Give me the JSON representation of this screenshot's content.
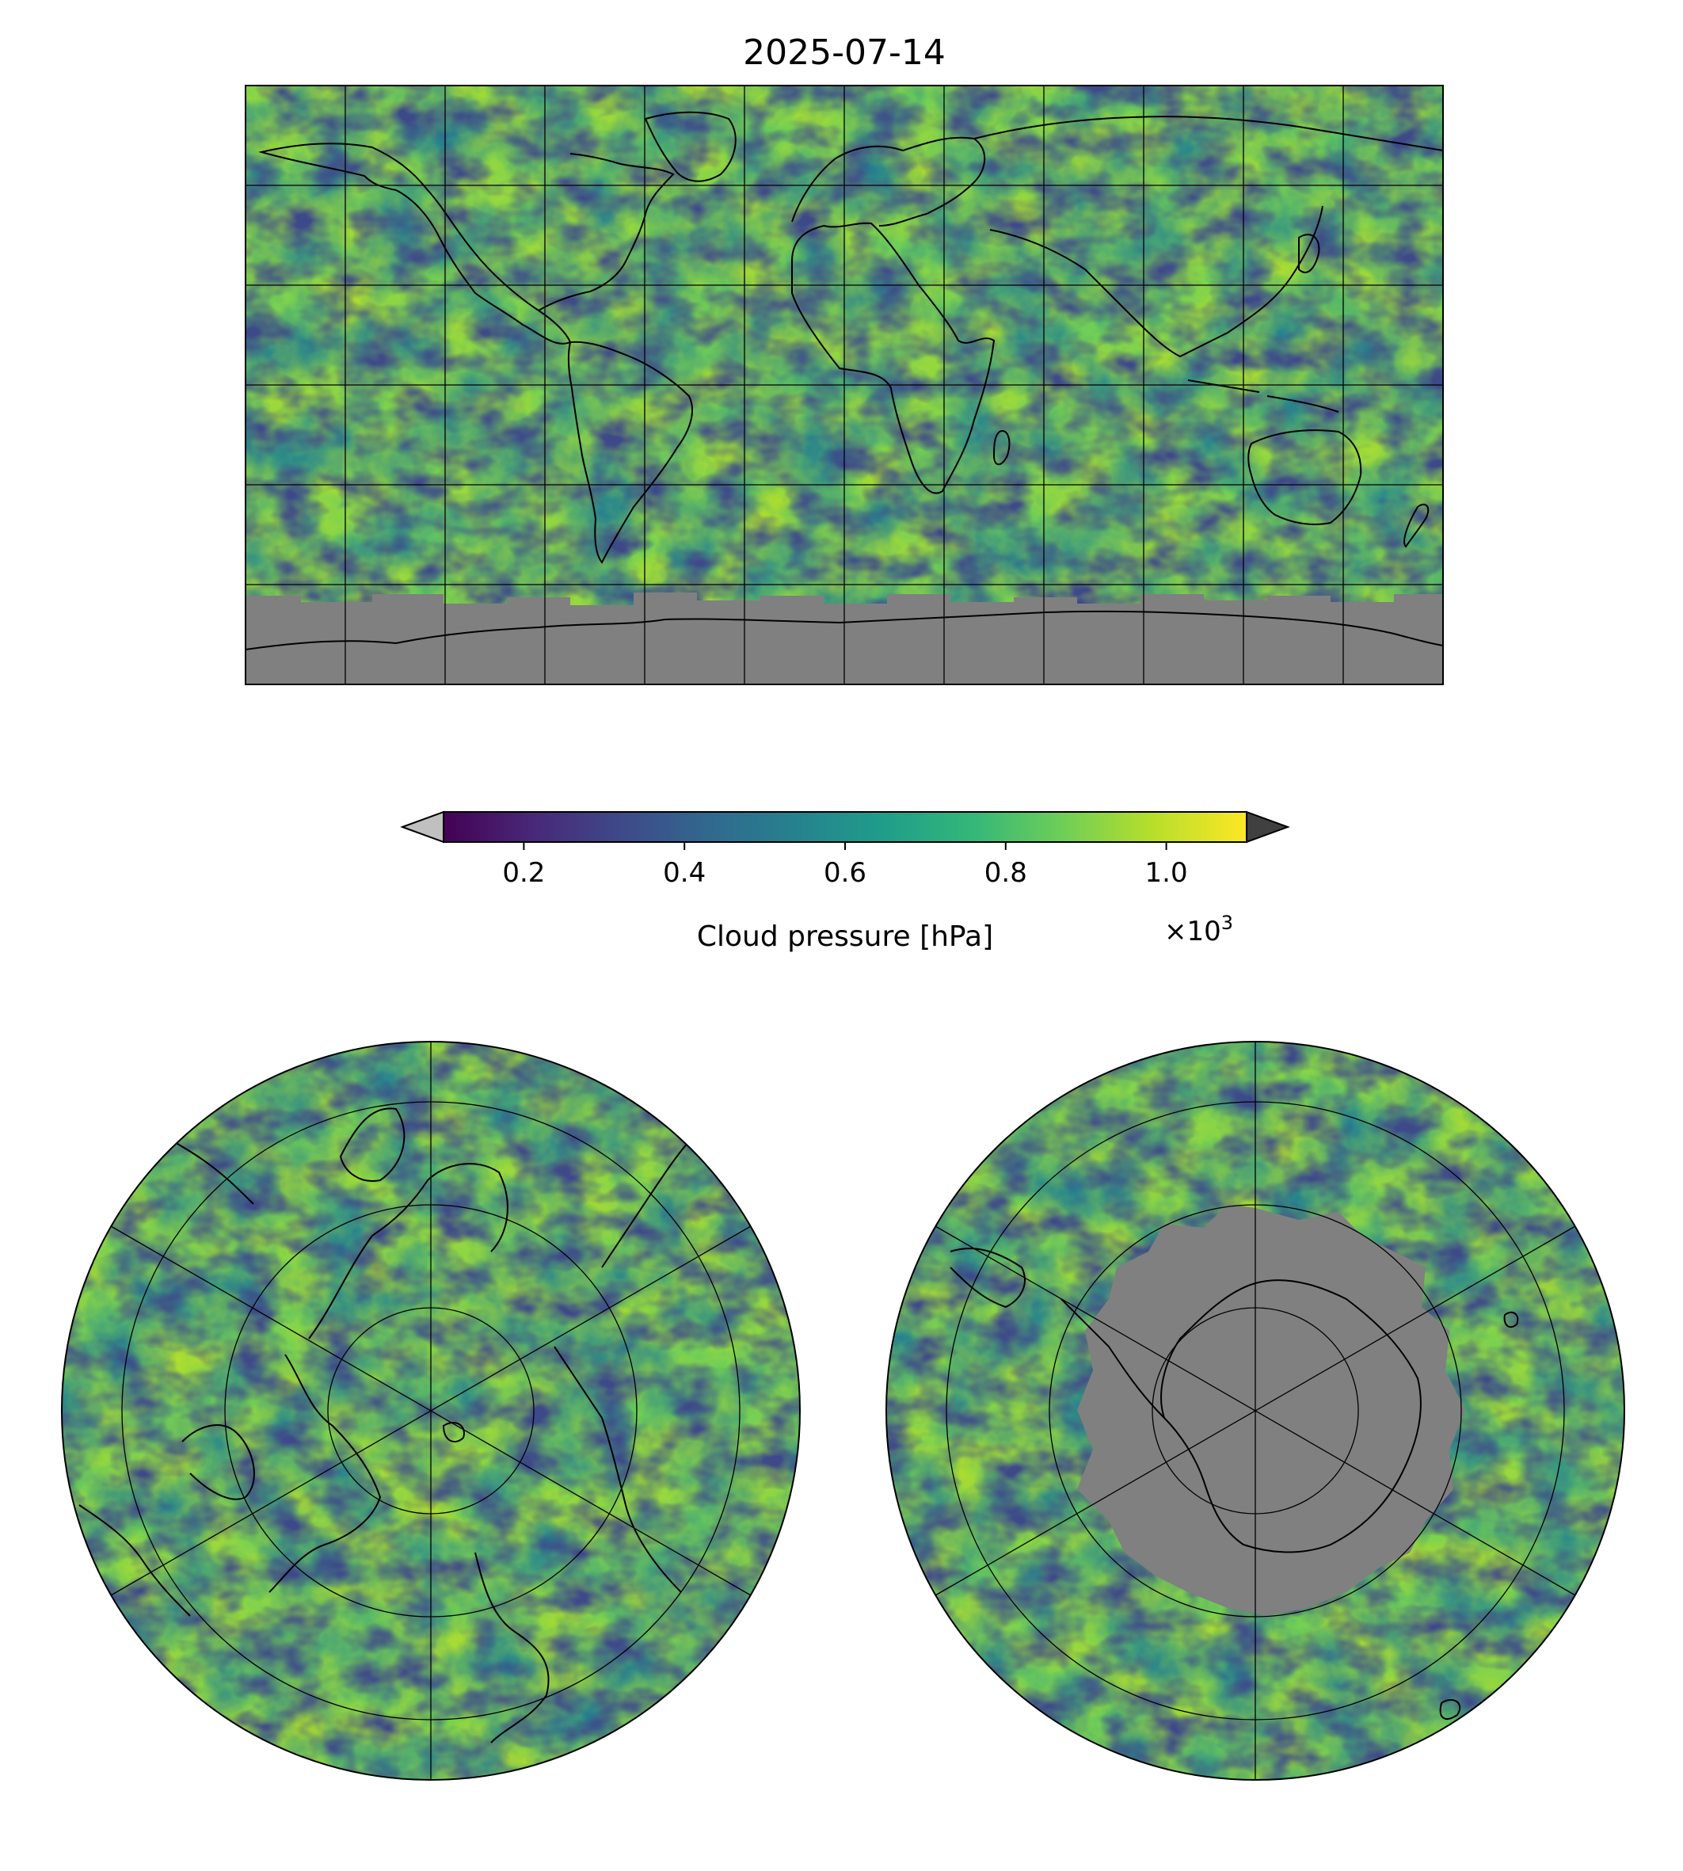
{
  "figure": {
    "title": "2025-07-14",
    "colors": {
      "viridis": [
        "#440154",
        "#482878",
        "#3e4989",
        "#31688e",
        "#26828e",
        "#1f9e89",
        "#35b779",
        "#6ece58",
        "#b5de2b",
        "#fde725"
      ],
      "under": "#c0c0c0",
      "over": "#404040",
      "no_data": "#808080",
      "coast": "#000000"
    }
  },
  "colorbar": {
    "label": "Cloud pressure [hPa]",
    "multiplier": "×10",
    "exponent": "3",
    "vmin": 0.1,
    "vmax": 1.1,
    "ticks": [
      {
        "value": 0.2,
        "label": "0.2"
      },
      {
        "value": 0.4,
        "label": "0.4"
      },
      {
        "value": 0.6,
        "label": "0.6"
      },
      {
        "value": 0.8,
        "label": "0.8"
      },
      {
        "value": 1.0,
        "label": "1.0"
      }
    ],
    "extend": "both"
  },
  "maps": [
    {
      "id": "global",
      "projection": "PlateCarree",
      "gridline_step_lon": 30,
      "gridline_step_lat": 30
    },
    {
      "id": "north",
      "projection": "NorthPolarStereo"
    },
    {
      "id": "south",
      "projection": "SouthPolarStereo"
    }
  ]
}
